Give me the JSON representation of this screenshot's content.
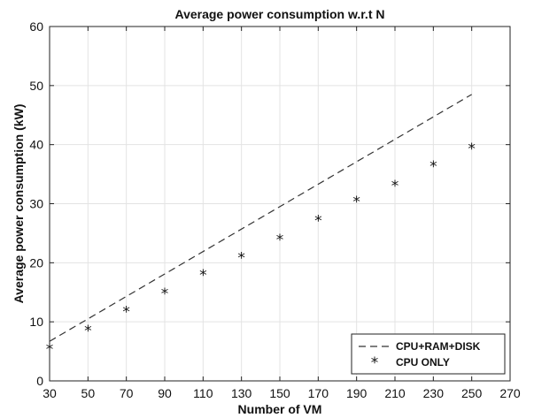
{
  "chart_data": {
    "type": "line",
    "title": "Average power consumption w.r.t N",
    "xlabel": "Number of VM",
    "ylabel": "Average power consumption (kW)",
    "xlim": [
      30,
      270
    ],
    "ylim": [
      0,
      60
    ],
    "xticks": [
      30,
      50,
      70,
      90,
      110,
      130,
      150,
      170,
      190,
      210,
      230,
      250,
      270
    ],
    "yticks": [
      0,
      10,
      20,
      30,
      40,
      50,
      60
    ],
    "grid": true,
    "legend_position": "bottom-right",
    "series": [
      {
        "name": "CPU+RAM+DISK",
        "style": "dashed-line",
        "color": "#333333",
        "x": [
          30,
          250
        ],
        "y": [
          6.7,
          48.5
        ]
      },
      {
        "name": "CPU ONLY",
        "style": "asterisk-markers",
        "color": "#111111",
        "x": [
          30,
          50,
          70,
          90,
          110,
          130,
          150,
          170,
          190,
          210,
          230,
          250
        ],
        "y": [
          5.5,
          8.7,
          11.9,
          15.0,
          18.1,
          21.0,
          24.1,
          27.3,
          30.5,
          33.2,
          36.5,
          39.5
        ]
      }
    ]
  }
}
